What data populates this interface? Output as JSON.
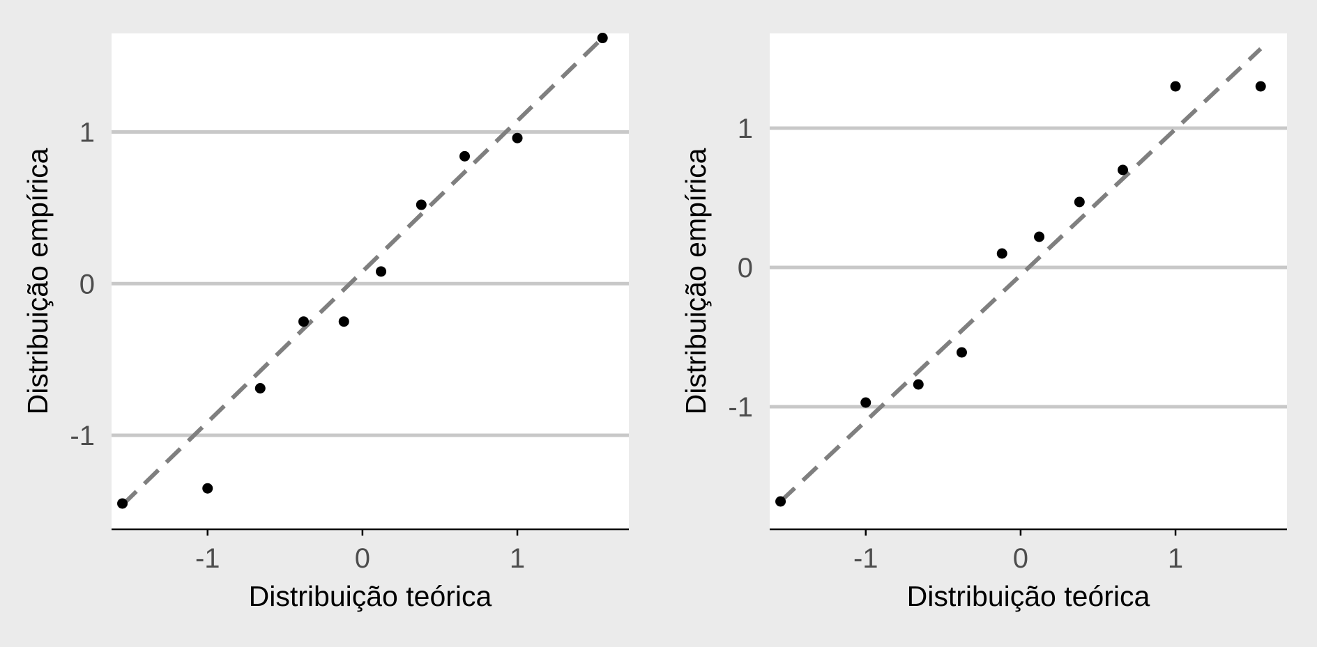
{
  "colors": {
    "background": "#ebebeb",
    "panel": "#ffffff",
    "grid": "#c8c8c8",
    "axis_line": "#000000",
    "points": "#000000",
    "reference_line": "#7f7f7f",
    "tick_text": "#4d4d4d",
    "label_text": "#000000"
  },
  "chart_data": [
    {
      "type": "scatter",
      "title": "",
      "xlabel": "Distribuição teórica",
      "ylabel": "Distribuição empírica",
      "xlim": [
        -1.62,
        1.72
      ],
      "ylim": [
        -1.62,
        1.65
      ],
      "xticks": [
        -1,
        0,
        1
      ],
      "xtick_labels": [
        "-1",
        "0",
        "1"
      ],
      "yticks": [
        -1,
        0,
        1
      ],
      "ytick_labels": [
        "-1",
        "0",
        "1"
      ],
      "grid": "horizontal major",
      "reference_line": {
        "style": "dashed",
        "from": [
          -1.55,
          -1.46
        ],
        "to": [
          1.55,
          1.62
        ]
      },
      "points": [
        {
          "x": -1.55,
          "y": -1.45
        },
        {
          "x": -1.0,
          "y": -1.35
        },
        {
          "x": -0.66,
          "y": -0.69
        },
        {
          "x": -0.38,
          "y": -0.25
        },
        {
          "x": -0.12,
          "y": -0.25
        },
        {
          "x": 0.12,
          "y": 0.08
        },
        {
          "x": 0.38,
          "y": 0.52
        },
        {
          "x": 0.66,
          "y": 0.84
        },
        {
          "x": 1.0,
          "y": 0.96
        },
        {
          "x": 1.55,
          "y": 1.62
        }
      ]
    },
    {
      "type": "scatter",
      "title": "",
      "xlabel": "Distribuição teórica",
      "ylabel": "Distribuição empírica",
      "xlim": [
        -1.62,
        1.72
      ],
      "ylim": [
        -1.88,
        1.68
      ],
      "xticks": [
        -1,
        0,
        1
      ],
      "xtick_labels": [
        "-1",
        "0",
        "1"
      ],
      "yticks": [
        -1,
        0,
        1
      ],
      "ytick_labels": [
        "-1",
        "0",
        "1"
      ],
      "grid": "horizontal major",
      "reference_line": {
        "style": "dashed",
        "from": [
          -1.55,
          -1.68
        ],
        "to": [
          1.55,
          1.57
        ]
      },
      "points": [
        {
          "x": -1.55,
          "y": -1.68
        },
        {
          "x": -1.0,
          "y": -0.97
        },
        {
          "x": -0.66,
          "y": -0.84
        },
        {
          "x": -0.38,
          "y": -0.61
        },
        {
          "x": -0.12,
          "y": 0.1
        },
        {
          "x": 0.12,
          "y": 0.22
        },
        {
          "x": 0.38,
          "y": 0.47
        },
        {
          "x": 0.66,
          "y": 0.7
        },
        {
          "x": 1.0,
          "y": 1.3
        },
        {
          "x": 1.55,
          "y": 1.3
        }
      ]
    }
  ]
}
